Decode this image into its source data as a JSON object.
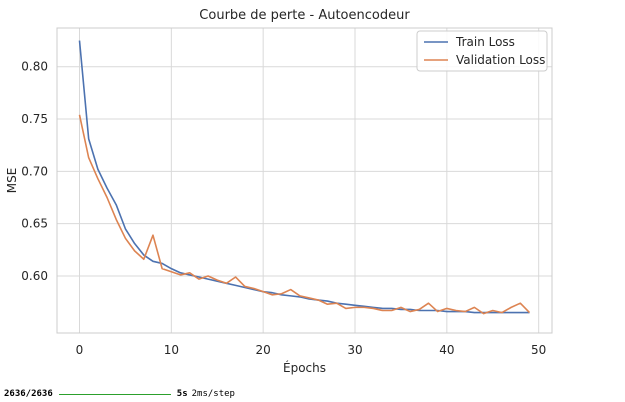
{
  "chart_data": {
    "type": "line",
    "title": "Courbe de perte - Autoencodeur",
    "xlabel": "Épochs",
    "ylabel": "MSE",
    "xlim": [
      -2.45,
      51.45
    ],
    "ylim": [
      0.5455,
      0.837
    ],
    "xticks": [
      0,
      10,
      20,
      30,
      40,
      50
    ],
    "yticks": [
      0.6,
      0.65,
      0.7,
      0.75,
      0.8
    ],
    "xtick_labels": [
      "0",
      "10",
      "20",
      "30",
      "40",
      "50"
    ],
    "ytick_labels": [
      "0.60",
      "0.65",
      "0.70",
      "0.75",
      "0.80"
    ],
    "grid": true,
    "legend_position": "upper right",
    "x": [
      0,
      1,
      2,
      3,
      4,
      5,
      6,
      7,
      8,
      9,
      10,
      11,
      12,
      13,
      14,
      15,
      16,
      17,
      18,
      19,
      20,
      21,
      22,
      23,
      24,
      25,
      26,
      27,
      28,
      29,
      30,
      31,
      32,
      33,
      34,
      35,
      36,
      37,
      38,
      39,
      40,
      41,
      42,
      43,
      44,
      45,
      46,
      47,
      48,
      49
    ],
    "series": [
      {
        "name": "Train Loss",
        "color": "#4c72b0",
        "values": [
          0.825,
          0.731,
          0.702,
          0.684,
          0.668,
          0.645,
          0.631,
          0.62,
          0.614,
          0.612,
          0.607,
          0.603,
          0.601,
          0.599,
          0.597,
          0.595,
          0.593,
          0.591,
          0.589,
          0.587,
          0.585,
          0.584,
          0.582,
          0.581,
          0.58,
          0.578,
          0.577,
          0.576,
          0.574,
          0.573,
          0.572,
          0.571,
          0.57,
          0.569,
          0.569,
          0.568,
          0.568,
          0.567,
          0.567,
          0.567,
          0.566,
          0.566,
          0.566,
          0.565,
          0.565,
          0.565,
          0.565,
          0.565,
          0.565,
          0.565
        ]
      },
      {
        "name": "Validation Loss",
        "color": "#dd8452",
        "values": [
          0.754,
          0.713,
          0.693,
          0.675,
          0.654,
          0.636,
          0.624,
          0.616,
          0.639,
          0.607,
          0.604,
          0.601,
          0.603,
          0.597,
          0.6,
          0.596,
          0.593,
          0.599,
          0.59,
          0.588,
          0.585,
          0.582,
          0.583,
          0.587,
          0.581,
          0.579,
          0.577,
          0.573,
          0.574,
          0.569,
          0.57,
          0.57,
          0.569,
          0.567,
          0.567,
          0.57,
          0.566,
          0.568,
          0.574,
          0.566,
          0.569,
          0.567,
          0.566,
          0.57,
          0.564,
          0.567,
          0.565,
          0.57,
          0.574,
          0.565
        ]
      }
    ]
  },
  "console": {
    "count": "2636/2636",
    "time": "5s",
    "rate": "2ms/step"
  }
}
